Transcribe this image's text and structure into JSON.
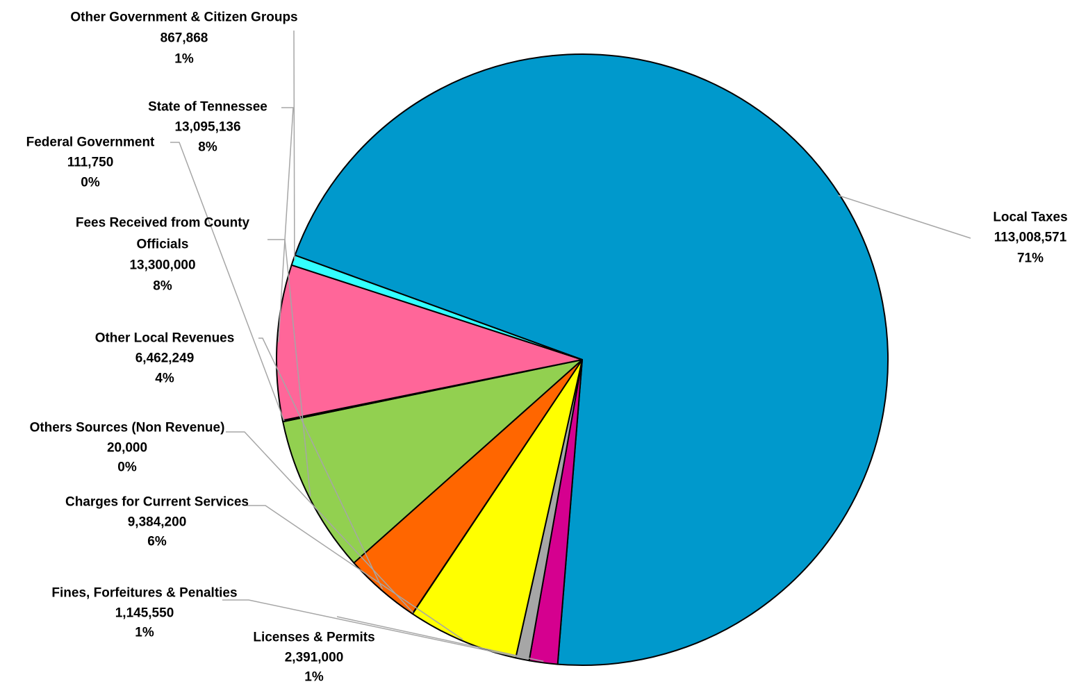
{
  "chart_data": {
    "type": "pie",
    "title": "",
    "slices": [
      {
        "label": "Local Taxes",
        "value": 113008571,
        "value_label": "113,008,571",
        "percent_label": "71%",
        "color": "#0099CC"
      },
      {
        "label": "Licenses & Permits",
        "value": 2391000,
        "value_label": "2,391,000",
        "percent_label": "1%",
        "color": "#D5008F"
      },
      {
        "label": "Fines, Forfeitures & Penalties",
        "value": 1145550,
        "value_label": "1,145,550",
        "percent_label": "1%",
        "color": "#A6A6A6"
      },
      {
        "label": "Charges for Current Services",
        "value": 9384200,
        "value_label": "9,384,200",
        "percent_label": "6%",
        "color": "#FFFF00"
      },
      {
        "label": "Others Sources (Non Revenue)",
        "value": 20000,
        "value_label": "20,000",
        "percent_label": "0%",
        "color": "#7F7F7F"
      },
      {
        "label": "Other Local Revenues",
        "value": 6462249,
        "value_label": "6,462,249",
        "percent_label": "4%",
        "color": "#FF6600"
      },
      {
        "label": "Fees Received from County Officials",
        "value": 13300000,
        "value_label": "13,300,000",
        "percent_label": "8%",
        "color": "#92D050"
      },
      {
        "label": "Federal Government",
        "value": 111750,
        "value_label": "111,750",
        "percent_label": "0%",
        "color": "#404040"
      },
      {
        "label": "State of Tennessee",
        "value": 13095136,
        "value_label": "13,095,136",
        "percent_label": "8%",
        "color": "#FF6699"
      },
      {
        "label": "Other Government & Citizen Groups",
        "value": 867868,
        "value_label": "867,868",
        "percent_label": "1%",
        "color": "#33FFFF"
      }
    ]
  }
}
